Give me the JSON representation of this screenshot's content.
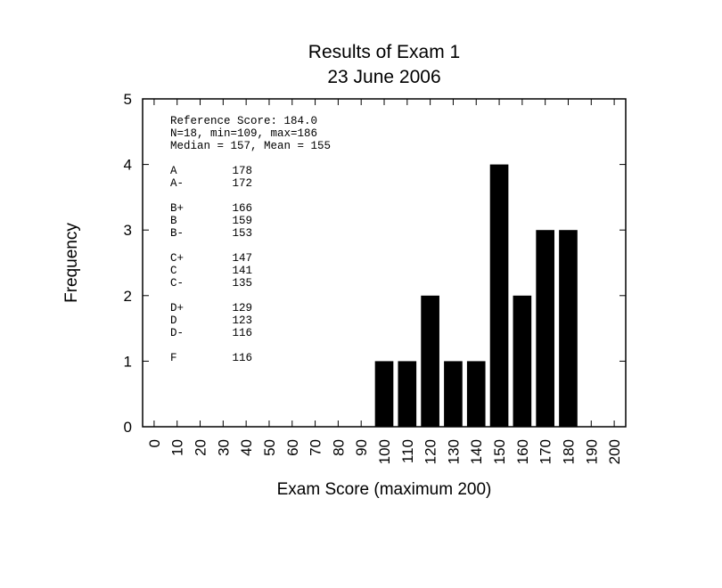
{
  "chart_data": {
    "type": "bar",
    "title": [
      "Results of Exam 1",
      "23 June 2006"
    ],
    "xlabel": "Exam Score (maximum 200)",
    "ylabel": "Frequency",
    "xlim": [
      -5,
      205
    ],
    "ylim": [
      0,
      5
    ],
    "x_ticks": [
      "0",
      "10",
      "20",
      "30",
      "40",
      "50",
      "60",
      "70",
      "80",
      "90",
      "100",
      "110",
      "120",
      "130",
      "140",
      "150",
      "160",
      "170",
      "180",
      "190",
      "200"
    ],
    "y_ticks": [
      "0",
      "1",
      "2",
      "3",
      "4",
      "5"
    ],
    "bar_width": 8,
    "categories": [
      "100",
      "110",
      "120",
      "130",
      "140",
      "150",
      "160",
      "170",
      "180"
    ],
    "values": [
      1,
      1,
      2,
      1,
      1,
      4,
      2,
      3,
      3
    ],
    "grid": false,
    "bar_color": "#000000"
  },
  "annotation": {
    "summary": [
      "Reference Score: 184.0",
      "N=18, min=109, max=186",
      "Median = 157, Mean = 155"
    ],
    "grades": [
      {
        "grade": "A",
        "cutoff": "178"
      },
      {
        "grade": "A-",
        "cutoff": "172"
      },
      {
        "grade": "B+",
        "cutoff": "166"
      },
      {
        "grade": "B",
        "cutoff": "159"
      },
      {
        "grade": "B-",
        "cutoff": "153"
      },
      {
        "grade": "C+",
        "cutoff": "147"
      },
      {
        "grade": "C",
        "cutoff": "141"
      },
      {
        "grade": "C-",
        "cutoff": "135"
      },
      {
        "grade": "D+",
        "cutoff": "129"
      },
      {
        "grade": "D",
        "cutoff": "123"
      },
      {
        "grade": "D-",
        "cutoff": "116"
      },
      {
        "grade": "F",
        "cutoff": "116"
      }
    ]
  }
}
